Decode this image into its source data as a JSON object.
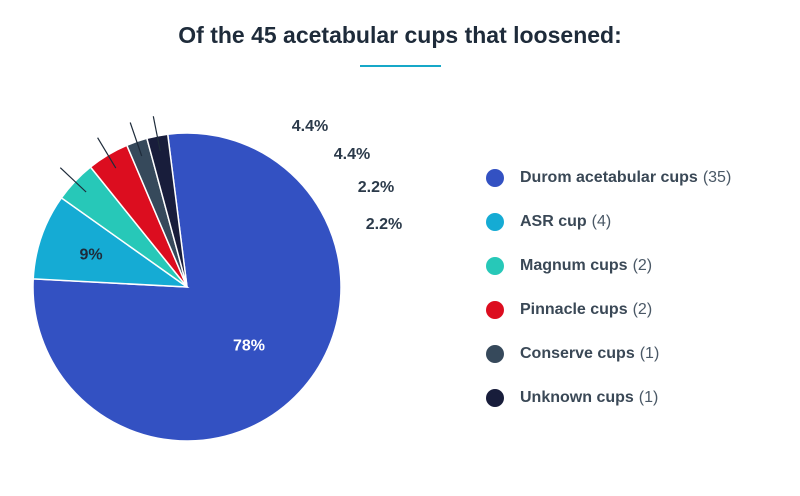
{
  "title": "Of the 45 acetabular cups that loosened:",
  "colors": {
    "accent": "#17a8c8",
    "slices": [
      "#3351c2",
      "#15abd4",
      "#27c8b8",
      "#dc0d1f",
      "#36495b",
      "#181d3b"
    ]
  },
  "chart_data": {
    "type": "pie",
    "title": "Of the 45 acetabular cups that loosened:",
    "legend_position": "right",
    "slices": [
      {
        "label": "Durom acetabular cups",
        "count": "(35)",
        "value": 78,
        "value_label": "78%"
      },
      {
        "label": "ASR cup",
        "count": "(4)",
        "value": 9,
        "value_label": "9%"
      },
      {
        "label": "Magnum cups",
        "count": "(2)",
        "value": 4.4,
        "value_label": "4.4%"
      },
      {
        "label": "Pinnacle cups",
        "count": "(2)",
        "value": 4.4,
        "value_label": "4.4%"
      },
      {
        "label": "Conserve cups",
        "count": "(1)",
        "value": 2.2,
        "value_label": "2.2%"
      },
      {
        "label": "Unknown cups",
        "count": "(1)",
        "value": 2.2,
        "value_label": "2.2%"
      }
    ]
  }
}
